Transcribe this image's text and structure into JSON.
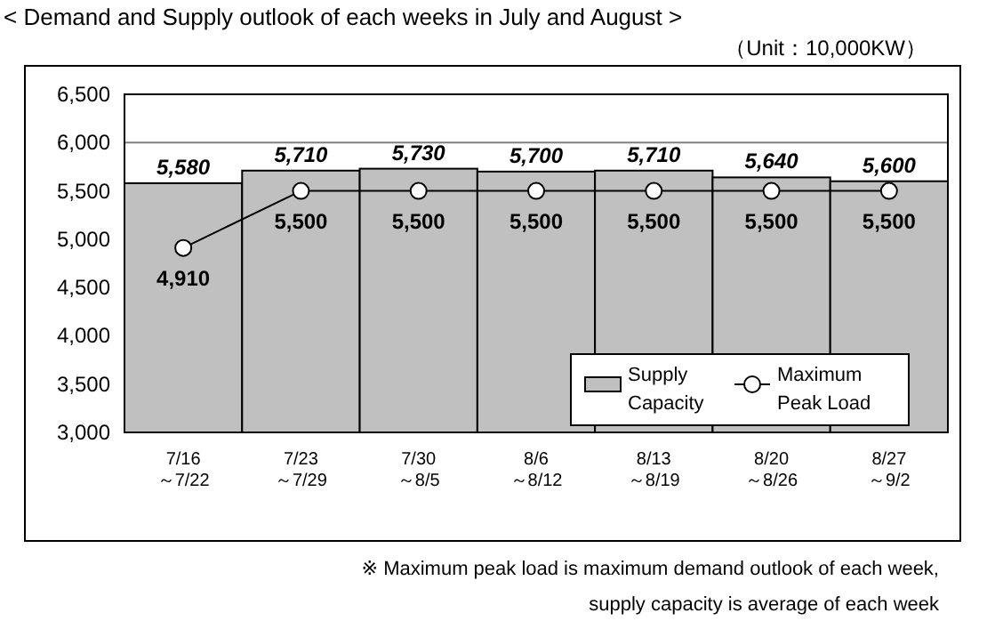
{
  "chart_data": {
    "type": "bar",
    "title": "< Demand and Supply outlook of each weeks in July and August >",
    "subtitle": "（Unit：10,000KW）",
    "categories": [
      "7/16\n～7/22",
      "7/23\n～7/29",
      "7/30\n～8/5",
      "8/6\n～8/12",
      "8/13\n～8/19",
      "8/20\n～8/26",
      "8/27\n～9/2"
    ],
    "series": [
      {
        "name": "Supply Capacity",
        "color": "#c0c0c0",
        "values": [
          5580,
          5710,
          5730,
          5700,
          5710,
          5640,
          5600
        ],
        "value_labels": [
          "5,580",
          "5,710",
          "5,730",
          "5,700",
          "5,710",
          "5,640",
          "5,600"
        ]
      },
      {
        "name": "Maximum Peak Load",
        "type": "line",
        "color": "#000000",
        "values": [
          4910,
          5500,
          5500,
          5500,
          5500,
          5500,
          5500
        ],
        "value_labels": [
          "4,910",
          "5,500",
          "5,500",
          "5,500",
          "5,500",
          "5,500",
          "5,500"
        ]
      }
    ],
    "ylim": [
      3000,
      6500
    ],
    "yticks": [
      {
        "value": 3000,
        "label": "3,000"
      },
      {
        "value": 3500,
        "label": "3,500"
      },
      {
        "value": 4000,
        "label": "4,000"
      },
      {
        "value": 4500,
        "label": "4,500"
      },
      {
        "value": 5000,
        "label": "5,000"
      },
      {
        "value": 5500,
        "label": "5,500"
      },
      {
        "value": 6000,
        "label": "6,000"
      },
      {
        "value": 6500,
        "label": "6,500"
      }
    ],
    "grid": "y",
    "legend": "bottom right",
    "marker": "circle",
    "annotations": [
      "※  Maximum peak load is maximum demand outlook of each week,",
      "supply capacity is average of each week"
    ]
  }
}
